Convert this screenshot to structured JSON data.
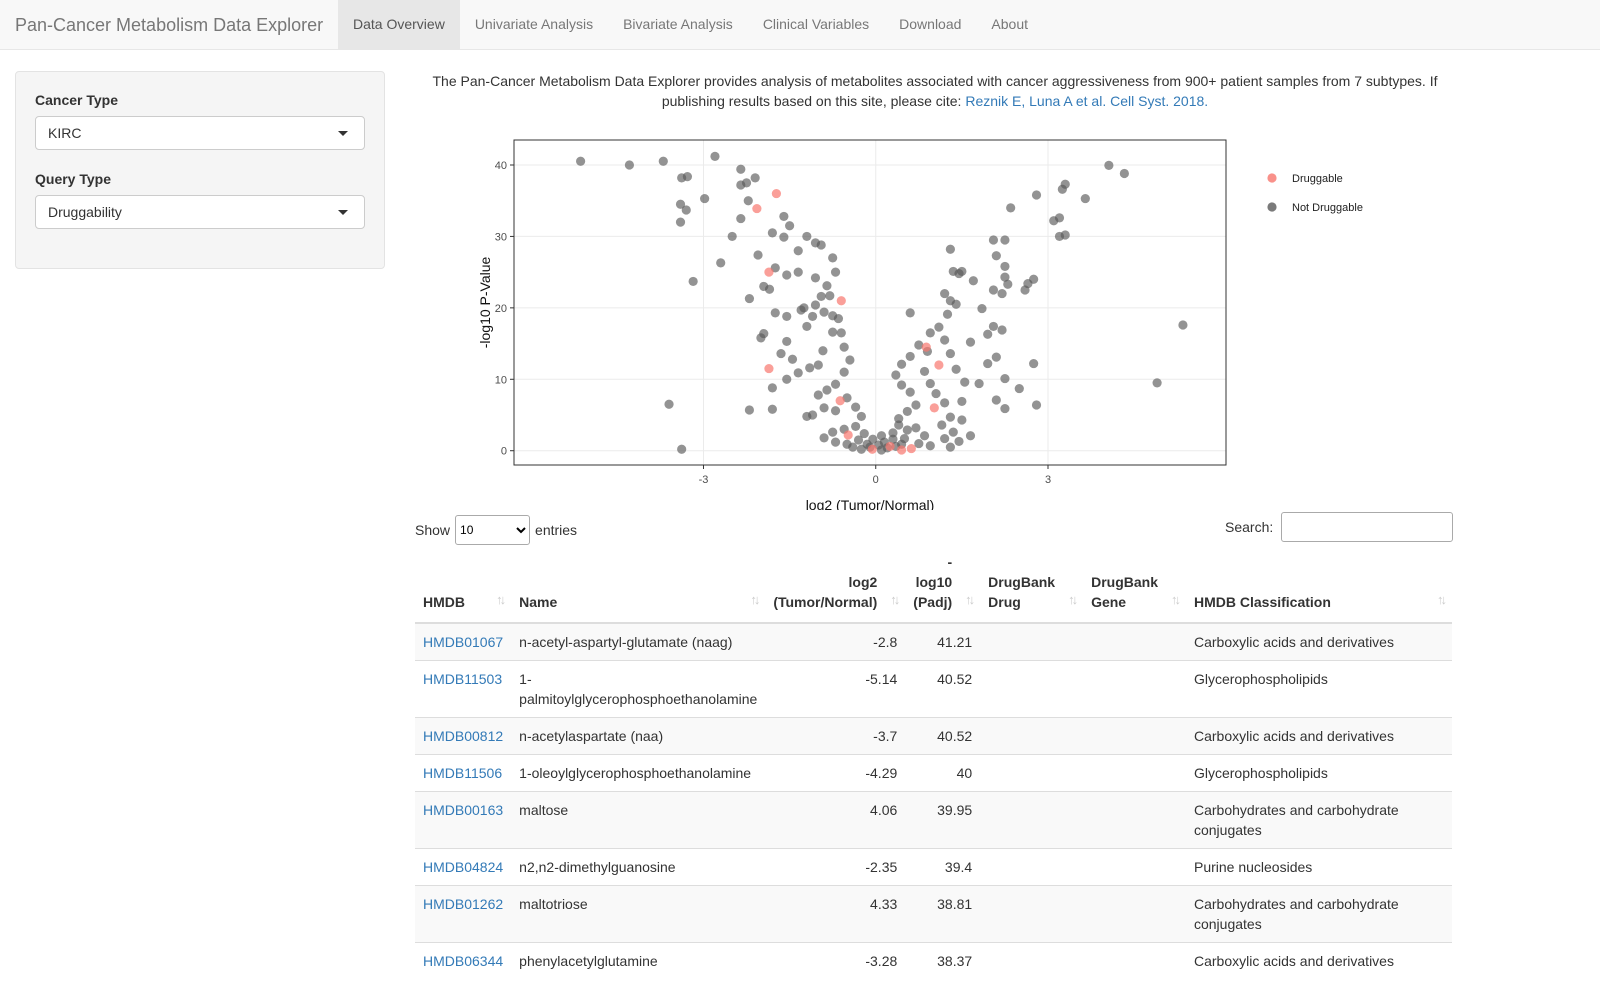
{
  "navbar": {
    "brand": "Pan-Cancer Metabolism Data Explorer",
    "tabs": [
      {
        "label": "Data Overview",
        "active": true
      },
      {
        "label": "Univariate Analysis",
        "active": false
      },
      {
        "label": "Bivariate Analysis",
        "active": false
      },
      {
        "label": "Clinical Variables",
        "active": false
      },
      {
        "label": "Download",
        "active": false
      },
      {
        "label": "About",
        "active": false
      }
    ]
  },
  "sidebar": {
    "cancer_type_label": "Cancer Type",
    "cancer_type_value": "KIRC",
    "query_type_label": "Query Type",
    "query_type_value": "Druggability"
  },
  "intro": {
    "text": "The Pan-Cancer Metabolism Data Explorer provides analysis of metabolites associated with cancer aggressiveness from 900+ patient samples from 7 subtypes. If publishing results based on this site, please cite: ",
    "citation": "Reznik E, Luna A et al. Cell Syst. 2018."
  },
  "chart_data": {
    "type": "scatter",
    "xlabel": "log2 (Tumor/Normal)",
    "ylabel": "-log10 P-Value",
    "xlim": [
      -6.3,
      6.1
    ],
    "ylim": [
      -2,
      43.5
    ],
    "xticks": [
      -3,
      0,
      3
    ],
    "yticks": [
      0,
      10,
      20,
      30,
      40
    ],
    "grid": true,
    "legend_position": "right",
    "colors": {
      "Druggable": "#f8766d",
      "Not Druggable": "#595959"
    },
    "series": [
      {
        "name": "Druggable",
        "points": [
          [
            -2.07,
            33.9
          ],
          [
            -1.73,
            36
          ],
          [
            -1.86,
            25
          ],
          [
            -0.6,
            21
          ],
          [
            -1.86,
            11.5
          ],
          [
            0.88,
            14.5
          ],
          [
            1.1,
            12
          ],
          [
            1.02,
            6
          ],
          [
            -0.62,
            7
          ],
          [
            -0.48,
            2.2
          ],
          [
            0.62,
            0.3
          ],
          [
            0.25,
            0.6
          ],
          [
            -0.06,
            0.2
          ],
          [
            0.45,
            0.1
          ]
        ]
      },
      {
        "name": "Not Druggable",
        "points": [
          [
            -5.14,
            40.52
          ],
          [
            -4.29,
            40
          ],
          [
            -3.7,
            40.52
          ],
          [
            -2.8,
            41.21
          ],
          [
            -2.35,
            39.4
          ],
          [
            -3.28,
            38.37
          ],
          [
            -3.38,
            38.2
          ],
          [
            -2.98,
            35.3
          ],
          [
            -2.1,
            38.2
          ],
          [
            -2.25,
            37.5
          ],
          [
            -3.4,
            34.5
          ],
          [
            -3.3,
            33.7
          ],
          [
            -3.4,
            32
          ],
          [
            -2.35,
            37.2
          ],
          [
            -2.22,
            35
          ],
          [
            -2.35,
            32.5
          ],
          [
            -2.5,
            30
          ],
          [
            -2.05,
            27.4
          ],
          [
            -2.7,
            26.3
          ],
          [
            -3.18,
            23.7
          ],
          [
            -2.2,
            21.3
          ],
          [
            -1.95,
            16.4
          ],
          [
            -2.0,
            15.8
          ],
          [
            -3.6,
            6.5
          ],
          [
            -3.38,
            0.2
          ],
          [
            -2.2,
            5.7
          ],
          [
            -1.8,
            5.8
          ],
          [
            -1.8,
            8.8
          ],
          [
            -1.1,
            5
          ],
          [
            -1.2,
            4.8
          ],
          [
            -1.95,
            23
          ],
          [
            -1.85,
            22.6
          ],
          [
            -1.75,
            25.6
          ],
          [
            -1.55,
            24.6
          ],
          [
            -1.35,
            25
          ],
          [
            -1.05,
            24.2
          ],
          [
            -0.85,
            23.1
          ],
          [
            -0.8,
            21.7
          ],
          [
            -0.65,
            18.5
          ],
          [
            -0.75,
            16.6
          ],
          [
            -0.92,
            14
          ],
          [
            -1.0,
            12
          ],
          [
            -1.15,
            11.6
          ],
          [
            -1.35,
            10.9
          ],
          [
            -1.55,
            10
          ],
          [
            -1.45,
            12.8
          ],
          [
            -1.65,
            13.6
          ],
          [
            -1.55,
            15.3
          ],
          [
            -1.2,
            17.4
          ],
          [
            -1.25,
            20
          ],
          [
            -1.05,
            20.4
          ],
          [
            -0.95,
            21.6
          ],
          [
            -0.7,
            25
          ],
          [
            -0.75,
            27
          ],
          [
            -0.95,
            28.8
          ],
          [
            -1.35,
            28
          ],
          [
            -1.6,
            29.9
          ],
          [
            -1.8,
            30.5
          ],
          [
            -1.6,
            32.8
          ],
          [
            -1.5,
            31.5
          ],
          [
            -1.2,
            30
          ],
          [
            -1.05,
            29.1
          ],
          [
            -1.75,
            19.3
          ],
          [
            -1.55,
            18.8
          ],
          [
            -1.3,
            19.7
          ],
          [
            -1.1,
            18.8
          ],
          [
            -0.9,
            19.4
          ],
          [
            -0.75,
            18.9
          ],
          [
            -0.6,
            16.5
          ],
          [
            -0.55,
            14.5
          ],
          [
            -0.45,
            12.7
          ],
          [
            -0.55,
            11
          ],
          [
            -0.7,
            9.3
          ],
          [
            -0.85,
            8.5
          ],
          [
            -1.0,
            7.8
          ],
          [
            -0.9,
            6
          ],
          [
            -0.7,
            5.6
          ],
          [
            -0.5,
            7.4
          ],
          [
            -0.35,
            6.1
          ],
          [
            -0.25,
            4.8
          ],
          [
            -0.35,
            3.4
          ],
          [
            -0.55,
            3
          ],
          [
            -0.75,
            2.6
          ],
          [
            -0.9,
            1.8
          ],
          [
            -0.7,
            1.2
          ],
          [
            -0.5,
            0.9
          ],
          [
            -0.3,
            1.5
          ],
          [
            -0.2,
            2.4
          ],
          [
            -0.15,
            0.9
          ],
          [
            -0.05,
            1.6
          ],
          [
            -0.4,
            0.5
          ],
          [
            -0.25,
            0.2
          ],
          [
            -0.1,
            0.5
          ],
          [
            0.05,
            0.8
          ],
          [
            0.1,
            0.1
          ],
          [
            0.15,
            1.2
          ],
          [
            0.2,
            0.4
          ],
          [
            0.3,
            1.6
          ],
          [
            0.35,
            0.6
          ],
          [
            0.45,
            0.9
          ],
          [
            0.5,
            1.7
          ],
          [
            0.3,
            2.5
          ],
          [
            0.1,
            2.1
          ],
          [
            0.55,
            2.9
          ],
          [
            0.4,
            3.6
          ],
          [
            0.7,
            3.2
          ],
          [
            0.85,
            2.1
          ],
          [
            0.75,
            1
          ],
          [
            0.95,
            0.7
          ],
          [
            0.4,
            4.5
          ],
          [
            0.55,
            5.5
          ],
          [
            0.7,
            6.4
          ],
          [
            0.6,
            8.2
          ],
          [
            0.45,
            9.2
          ],
          [
            0.35,
            10.6
          ],
          [
            0.45,
            12.1
          ],
          [
            0.6,
            13.2
          ],
          [
            0.75,
            14.8
          ],
          [
            0.9,
            13.9
          ],
          [
            0.85,
            11.1
          ],
          [
            0.95,
            9.4
          ],
          [
            1.05,
            8
          ],
          [
            1.2,
            6.7
          ],
          [
            1.3,
            4.7
          ],
          [
            1.15,
            3.6
          ],
          [
            1.35,
            2.6
          ],
          [
            1.45,
            1.3
          ],
          [
            1.3,
            0.5
          ],
          [
            1.2,
            1.7
          ],
          [
            1.5,
            4.3
          ],
          [
            1.5,
            6.9
          ],
          [
            1.55,
            9.6
          ],
          [
            1.4,
            11.4
          ],
          [
            1.3,
            13.6
          ],
          [
            1.2,
            15.5
          ],
          [
            1.1,
            17.3
          ],
          [
            1.25,
            19.1
          ],
          [
            1.3,
            21
          ],
          [
            1.4,
            20.5
          ],
          [
            1.2,
            22
          ],
          [
            1.45,
            24.8
          ],
          [
            1.35,
            25.1
          ],
          [
            1.5,
            25.1
          ],
          [
            1.3,
            28.2
          ],
          [
            0.6,
            19.3
          ],
          [
            0.95,
            16.5
          ],
          [
            1.65,
            15.2
          ],
          [
            1.7,
            23.8
          ],
          [
            1.8,
            9.4
          ],
          [
            1.65,
            2.1
          ],
          [
            1.85,
            19.9
          ],
          [
            1.95,
            16.3
          ],
          [
            2.05,
            17.4
          ],
          [
            2.2,
            16.9
          ],
          [
            2.1,
            13.1
          ],
          [
            1.95,
            12.2
          ],
          [
            2.25,
            10.1
          ],
          [
            2.1,
            7.1
          ],
          [
            2.25,
            5.9
          ],
          [
            2.5,
            8.7
          ],
          [
            2.6,
            22.5
          ],
          [
            2.65,
            23.4
          ],
          [
            2.75,
            24
          ],
          [
            2.2,
            22
          ],
          [
            2.05,
            22.5
          ],
          [
            2.3,
            23.3
          ],
          [
            2.25,
            24.3
          ],
          [
            2.25,
            25.8
          ],
          [
            2.1,
            27.3
          ],
          [
            2.05,
            29.5
          ],
          [
            2.25,
            29.5
          ],
          [
            2.35,
            34
          ],
          [
            2.8,
            35.8
          ],
          [
            3.1,
            32.2
          ],
          [
            3.2,
            32.6
          ],
          [
            3.2,
            30
          ],
          [
            3.3,
            30.2
          ],
          [
            3.25,
            36.6
          ],
          [
            3.3,
            37.3
          ],
          [
            3.65,
            35.3
          ],
          [
            4.06,
            39.95
          ],
          [
            4.33,
            38.81
          ],
          [
            4.9,
            9.5
          ],
          [
            5.35,
            17.6
          ],
          [
            2.75,
            12.2
          ],
          [
            2.8,
            6.4
          ]
        ]
      }
    ]
  },
  "table_controls": {
    "show_label": "Show",
    "entries_value": "10",
    "entries_label": "entries",
    "search_label": "Search:"
  },
  "table": {
    "headers": [
      "HMDB",
      "Name",
      "log2 (Tumor/Normal)",
      "-log10 (Padj)",
      "DrugBank Drug",
      "DrugBank Gene",
      "HMDB Classification"
    ],
    "rows": [
      {
        "hmdb": "HMDB01067",
        "name": "n-acetyl-aspartyl-glutamate (naag)",
        "log2": "-2.8",
        "padj": "41.21",
        "drug": "",
        "gene": "",
        "class": "Carboxylic acids and derivatives"
      },
      {
        "hmdb": "HMDB11503",
        "name": "1-palmitoylglycerophosphoethanolamine",
        "log2": "-5.14",
        "padj": "40.52",
        "drug": "",
        "gene": "",
        "class": "Glycerophospholipids"
      },
      {
        "hmdb": "HMDB00812",
        "name": "n-acetylaspartate (naa)",
        "log2": "-3.7",
        "padj": "40.52",
        "drug": "",
        "gene": "",
        "class": "Carboxylic acids and derivatives"
      },
      {
        "hmdb": "HMDB11506",
        "name": "1-oleoylglycerophosphoethanolamine",
        "log2": "-4.29",
        "padj": "40",
        "drug": "",
        "gene": "",
        "class": "Glycerophospholipids"
      },
      {
        "hmdb": "HMDB00163",
        "name": "maltose",
        "log2": "4.06",
        "padj": "39.95",
        "drug": "",
        "gene": "",
        "class": "Carbohydrates and carbohydrate conjugates"
      },
      {
        "hmdb": "HMDB04824",
        "name": "n2,n2-dimethylguanosine",
        "log2": "-2.35",
        "padj": "39.4",
        "drug": "",
        "gene": "",
        "class": "Purine nucleosides"
      },
      {
        "hmdb": "HMDB01262",
        "name": "maltotriose",
        "log2": "4.33",
        "padj": "38.81",
        "drug": "",
        "gene": "",
        "class": "Carbohydrates and carbohydrate conjugates"
      },
      {
        "hmdb": "HMDB06344",
        "name": "phenylacetylglutamine",
        "log2": "-3.28",
        "padj": "38.37",
        "drug": "",
        "gene": "",
        "class": "Carboxylic acids and derivatives"
      }
    ]
  }
}
